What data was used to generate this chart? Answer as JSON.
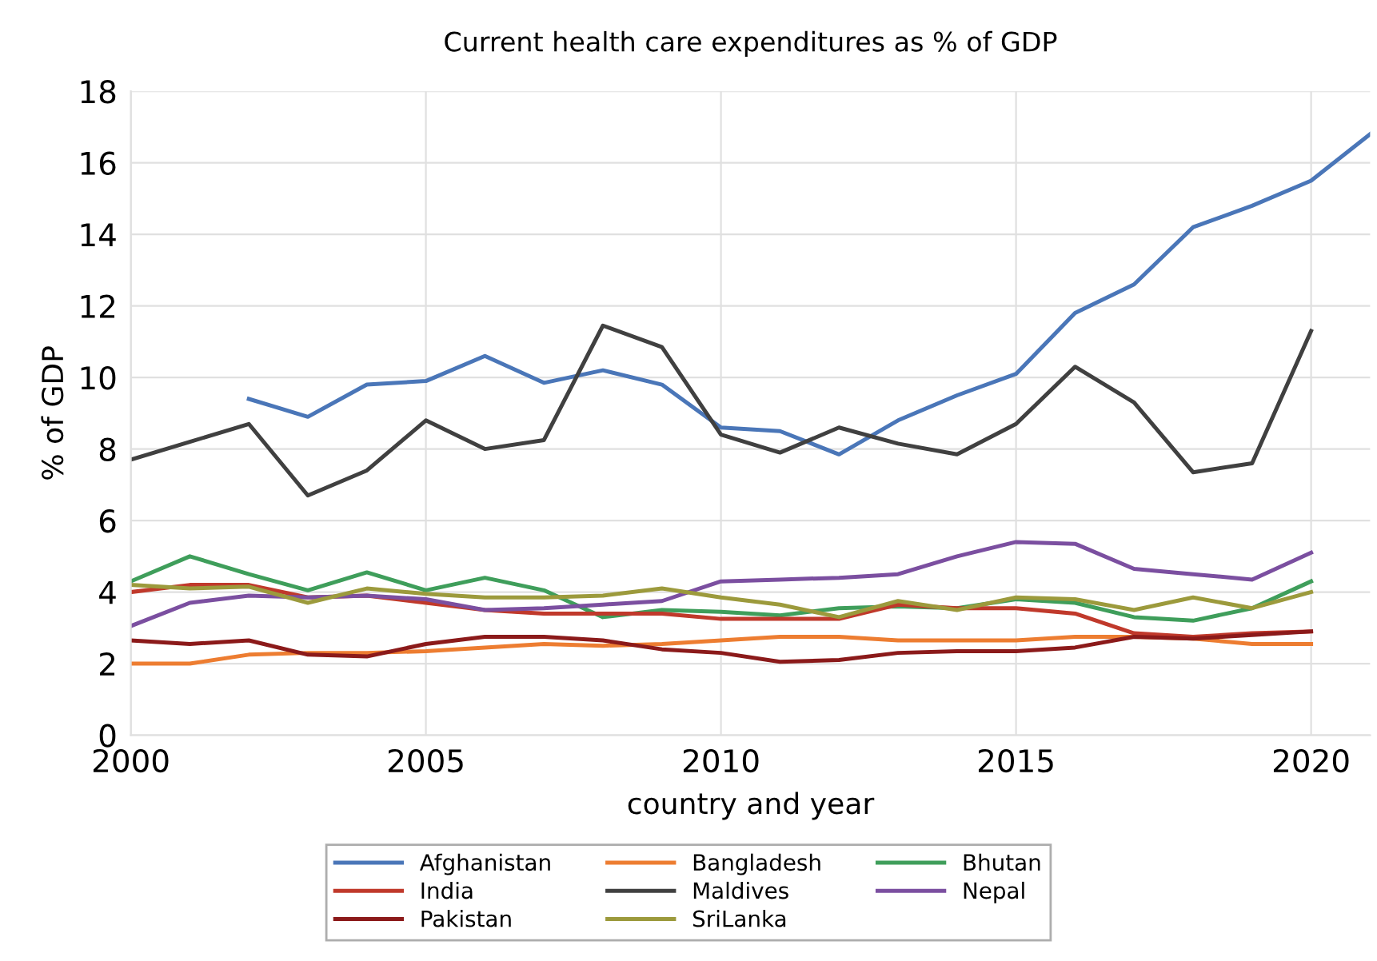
{
  "chart_data": {
    "type": "line",
    "title": "Current health care expenditures as % of GDP",
    "xlabel": "country and year",
    "ylabel": "% of GDP",
    "x": [
      2000,
      2001,
      2002,
      2003,
      2004,
      2005,
      2006,
      2007,
      2008,
      2009,
      2010,
      2011,
      2012,
      2013,
      2014,
      2015,
      2016,
      2017,
      2018,
      2019,
      2020
    ],
    "series": [
      {
        "name": "Afghanistan",
        "color": "#4a76b8",
        "x": [
          2002,
          2003,
          2004,
          2005,
          2006,
          2007,
          2008,
          2009,
          2010,
          2011,
          2012,
          2013,
          2014,
          2015,
          2016,
          2017,
          2018,
          2019,
          2020,
          2021
        ],
        "values": [
          9.4,
          8.9,
          9.8,
          9.9,
          10.6,
          9.85,
          10.2,
          9.8,
          8.6,
          8.5,
          7.85,
          8.8,
          9.5,
          10.1,
          11.8,
          12.6,
          14.2,
          14.8,
          15.5,
          16.8
        ]
      },
      {
        "name": "Bangladesh",
        "color": "#ed7d31",
        "values": [
          2.0,
          2.0,
          2.25,
          2.3,
          2.3,
          2.35,
          2.45,
          2.55,
          2.5,
          2.55,
          2.65,
          2.75,
          2.75,
          2.65,
          2.65,
          2.65,
          2.75,
          2.75,
          2.7,
          2.55,
          2.55
        ]
      },
      {
        "name": "Bhutan",
        "color": "#3f9e5b",
        "values": [
          4.3,
          5.0,
          4.5,
          4.05,
          4.55,
          4.05,
          4.4,
          4.05,
          3.3,
          3.5,
          3.45,
          3.35,
          3.55,
          3.6,
          3.55,
          3.8,
          3.7,
          3.3,
          3.2,
          3.55,
          4.3
        ]
      },
      {
        "name": "India",
        "color": "#c0392b",
        "values": [
          4.0,
          4.2,
          4.2,
          3.85,
          3.9,
          3.7,
          3.5,
          3.4,
          3.4,
          3.4,
          3.25,
          3.25,
          3.25,
          3.65,
          3.55,
          3.55,
          3.4,
          2.85,
          2.75,
          2.85,
          2.9
        ]
      },
      {
        "name": "Maldives",
        "color": "#404040",
        "values": [
          7.7,
          8.2,
          8.7,
          6.7,
          7.4,
          8.8,
          8.0,
          8.25,
          11.45,
          10.85,
          8.4,
          7.9,
          8.6,
          8.15,
          7.85,
          8.7,
          10.3,
          9.3,
          7.35,
          7.6,
          11.3
        ]
      },
      {
        "name": "Nepal",
        "color": "#7b4fa0",
        "values": [
          3.05,
          3.7,
          3.9,
          3.85,
          3.9,
          3.8,
          3.5,
          3.55,
          3.65,
          3.75,
          4.3,
          4.35,
          4.4,
          4.5,
          5.0,
          5.4,
          5.35,
          4.65,
          4.5,
          4.35,
          5.1
        ]
      },
      {
        "name": "Pakistan",
        "color": "#8b1a1a",
        "values": [
          2.65,
          2.55,
          2.65,
          2.25,
          2.2,
          2.55,
          2.75,
          2.75,
          2.65,
          2.4,
          2.3,
          2.05,
          2.1,
          2.3,
          2.35,
          2.35,
          2.45,
          2.75,
          2.7,
          2.8,
          2.9
        ]
      },
      {
        "name": "SriLanka",
        "color": "#9c9a3c",
        "values": [
          4.2,
          4.1,
          4.15,
          3.7,
          4.1,
          3.95,
          3.85,
          3.85,
          3.9,
          4.1,
          3.85,
          3.65,
          3.3,
          3.75,
          3.5,
          3.85,
          3.8,
          3.5,
          3.85,
          3.55,
          4.0
        ]
      }
    ],
    "xlim": [
      2000,
      2021
    ],
    "xticks": [
      2000,
      2005,
      2010,
      2015,
      2020
    ],
    "ylim": [
      0,
      18
    ],
    "yticks": [
      0,
      2,
      4,
      6,
      8,
      10,
      12,
      14,
      16,
      18
    ],
    "grid": true,
    "legend": "bottom",
    "marker": "none",
    "line_style": "solid"
  }
}
